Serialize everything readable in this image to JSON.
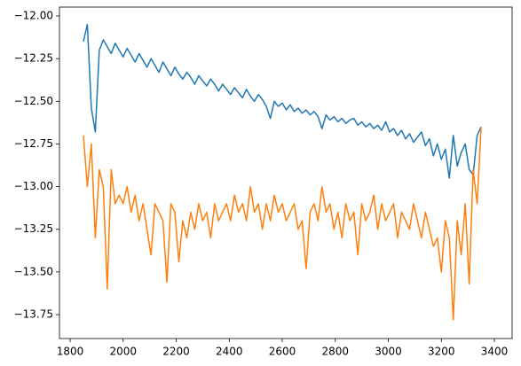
{
  "chart_data": {
    "type": "line",
    "x": [
      1850,
      1865,
      1880,
      1895,
      1910,
      1925,
      1940,
      1955,
      1970,
      1985,
      2000,
      2015,
      2030,
      2045,
      2060,
      2075,
      2090,
      2105,
      2120,
      2135,
      2150,
      2165,
      2180,
      2195,
      2210,
      2225,
      2240,
      2255,
      2270,
      2285,
      2300,
      2315,
      2330,
      2345,
      2360,
      2375,
      2390,
      2405,
      2420,
      2435,
      2450,
      2465,
      2480,
      2495,
      2510,
      2525,
      2540,
      2555,
      2570,
      2585,
      2600,
      2615,
      2630,
      2645,
      2660,
      2675,
      2690,
      2705,
      2720,
      2735,
      2750,
      2765,
      2780,
      2795,
      2810,
      2825,
      2840,
      2855,
      2870,
      2885,
      2900,
      2915,
      2930,
      2945,
      2960,
      2975,
      2990,
      3005,
      3020,
      3035,
      3050,
      3065,
      3080,
      3095,
      3110,
      3125,
      3140,
      3155,
      3170,
      3185,
      3200,
      3215,
      3230,
      3245,
      3260,
      3275,
      3290,
      3305,
      3320,
      3335,
      3350
    ],
    "series": [
      {
        "color": "#1f77b4",
        "values": [
          -12.15,
          -12.05,
          -12.54,
          -12.68,
          -12.2,
          -12.14,
          -12.18,
          -12.22,
          -12.16,
          -12.2,
          -12.24,
          -12.19,
          -12.23,
          -12.27,
          -12.22,
          -12.26,
          -12.3,
          -12.25,
          -12.29,
          -12.33,
          -12.27,
          -12.31,
          -12.35,
          -12.3,
          -12.34,
          -12.37,
          -12.33,
          -12.36,
          -12.4,
          -12.35,
          -12.38,
          -12.41,
          -12.37,
          -12.4,
          -12.44,
          -12.4,
          -12.43,
          -12.46,
          -12.42,
          -12.45,
          -12.48,
          -12.43,
          -12.47,
          -12.5,
          -12.46,
          -12.49,
          -12.53,
          -12.6,
          -12.5,
          -12.53,
          -12.51,
          -12.55,
          -12.52,
          -12.56,
          -12.54,
          -12.57,
          -12.55,
          -12.58,
          -12.56,
          -12.59,
          -12.66,
          -12.58,
          -12.61,
          -12.59,
          -12.62,
          -12.6,
          -12.63,
          -12.61,
          -12.6,
          -12.64,
          -12.62,
          -12.65,
          -12.63,
          -12.66,
          -12.64,
          -12.67,
          -12.62,
          -12.68,
          -12.66,
          -12.7,
          -12.67,
          -12.72,
          -12.69,
          -12.74,
          -12.71,
          -12.68,
          -12.76,
          -12.72,
          -12.82,
          -12.75,
          -12.84,
          -12.78,
          -12.95,
          -12.7,
          -12.88,
          -12.8,
          -12.75,
          -12.9,
          -12.93,
          -12.7,
          -12.65
        ]
      },
      {
        "color": "#ff7f0e",
        "values": [
          -12.7,
          -13.0,
          -12.75,
          -13.3,
          -12.9,
          -13.0,
          -13.6,
          -12.9,
          -13.1,
          -13.05,
          -13.1,
          -13.0,
          -13.15,
          -13.05,
          -13.2,
          -13.1,
          -13.25,
          -13.4,
          -13.1,
          -13.15,
          -13.2,
          -13.56,
          -13.1,
          -13.15,
          -13.44,
          -13.2,
          -13.3,
          -13.15,
          -13.25,
          -13.1,
          -13.2,
          -13.15,
          -13.3,
          -13.1,
          -13.2,
          -13.15,
          -13.1,
          -13.2,
          -13.05,
          -13.15,
          -13.1,
          -13.2,
          -13.0,
          -13.15,
          -13.1,
          -13.25,
          -13.1,
          -13.2,
          -13.05,
          -13.15,
          -13.1,
          -13.2,
          -13.15,
          -13.1,
          -13.25,
          -13.2,
          -13.48,
          -13.15,
          -13.1,
          -13.2,
          -13.0,
          -13.15,
          -13.1,
          -13.25,
          -13.15,
          -13.3,
          -13.1,
          -13.2,
          -13.15,
          -13.4,
          -13.1,
          -13.2,
          -13.15,
          -13.05,
          -13.25,
          -13.1,
          -13.2,
          -13.15,
          -13.1,
          -13.3,
          -13.15,
          -13.2,
          -13.25,
          -13.1,
          -13.2,
          -13.3,
          -13.15,
          -13.25,
          -13.35,
          -13.3,
          -13.5,
          -13.2,
          -13.3,
          -13.78,
          -13.2,
          -13.4,
          -13.1,
          -13.57,
          -12.9,
          -13.1,
          -12.65
        ]
      }
    ],
    "xlim": [
      1759.8,
      3466.9
    ],
    "xticks": [
      1800,
      2000,
      2200,
      2400,
      2600,
      2800,
      3000,
      3200,
      3400
    ],
    "ylim": [
      -13.89,
      -11.948
    ],
    "yticks": [
      {
        "value": -12.0,
        "label": "−12.00"
      },
      {
        "value": -12.25,
        "label": "−12.25"
      },
      {
        "value": -12.5,
        "label": "−12.50"
      },
      {
        "value": -12.75,
        "label": "−12.75"
      },
      {
        "value": -13.0,
        "label": "−13.00"
      },
      {
        "value": -13.25,
        "label": "−13.25"
      },
      {
        "value": -13.5,
        "label": "−13.50"
      },
      {
        "value": -13.75,
        "label": "−13.75"
      }
    ],
    "grid": false
  }
}
